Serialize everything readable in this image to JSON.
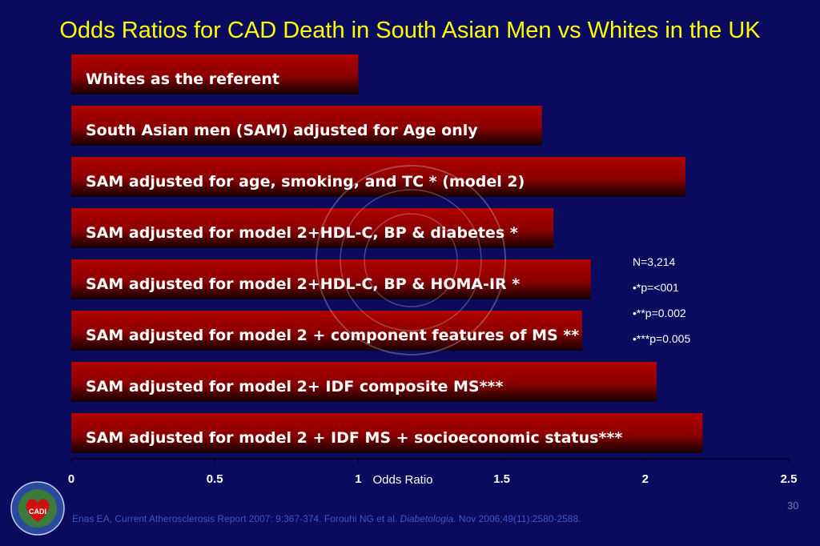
{
  "slide": {
    "title": "Odds Ratios for CAD Death in South Asian Men vs Whites in the UK",
    "notes": [
      "N=3,214",
      "•*p=<001",
      "•**p=0.002",
      "•***p=0.005"
    ],
    "citation_prefix": "Enas EA, Current Atherosclerosis Report 2007: 9:367-374. Forouhi NG et al. ",
    "citation_journal": "Diabetologia",
    "citation_suffix": ". Nov 2006;49(11):2580-2588.",
    "slide_number": "30",
    "logo_text": "CADI"
  },
  "chart_data": {
    "type": "bar",
    "orientation": "horizontal",
    "categories": [
      "Whites as the referent",
      "South Asian men (SAM) adjusted for Age only",
      "SAM adjusted for age, smoking, and TC * (model 2)",
      "SAM adjusted for model 2+HDL-C, BP & diabetes *",
      "SAM adjusted for model 2+HDL-C, BP & HOMA-IR *",
      "SAM adjusted for model 2 + component features of MS **",
      "SAM adjusted for model 2+ IDF composite MS***",
      "SAM adjusted for model 2 + IDF MS + socioeconomic status***"
    ],
    "values": [
      1.0,
      1.64,
      2.14,
      1.68,
      1.81,
      1.78,
      2.04,
      2.2
    ],
    "xlabel": "Odds Ratio",
    "xlim": [
      0,
      2.5
    ],
    "xticks": [
      0,
      0.5,
      1,
      1.5,
      2,
      2.5
    ],
    "xtick_labels": [
      "0",
      "0.5",
      "1",
      "1.5",
      "2",
      "2.5"
    ],
    "grid": false,
    "bar_color": "#9a0000",
    "bar_dark_color": "#1a0000"
  }
}
